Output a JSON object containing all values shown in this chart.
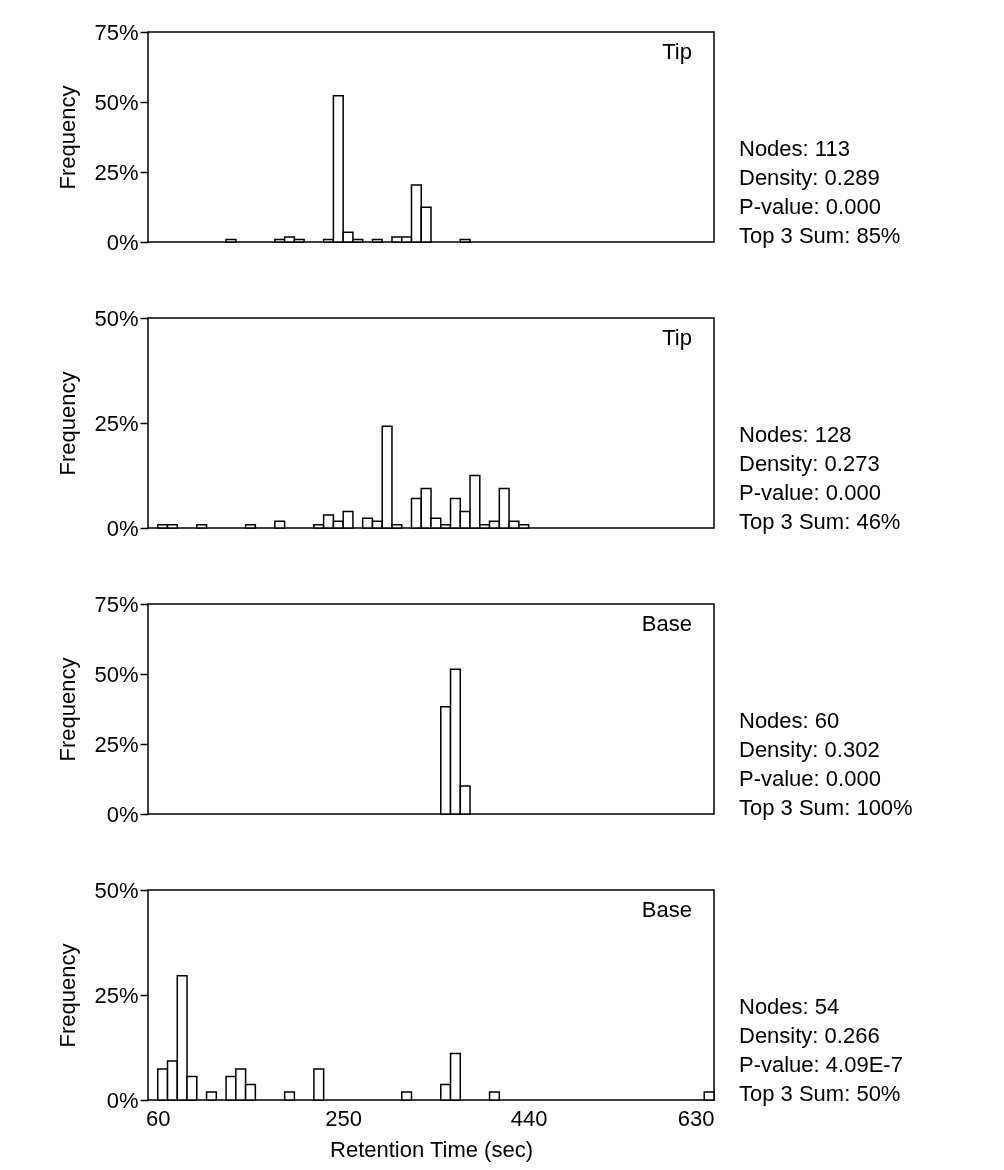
{
  "chart_data": [
    {
      "type": "histogram",
      "ylabel": "Frequency",
      "color": "#ffffff",
      "tick_labels": "y",
      "bins": [
        50,
        60,
        70,
        80,
        90,
        100,
        110,
        120,
        130,
        140,
        150,
        160,
        170,
        180,
        190,
        200,
        210,
        220,
        230,
        240,
        250,
        260,
        270,
        280,
        290,
        300,
        310,
        320,
        330,
        340,
        350,
        360,
        370,
        380,
        390,
        400,
        410,
        420,
        430,
        440,
        450,
        460,
        470,
        480,
        490,
        500,
        510,
        520,
        530,
        540,
        550,
        560,
        570,
        580,
        590,
        600,
        610,
        620,
        630
      ],
      "values": [
        0,
        0,
        0,
        0,
        0,
        0,
        0,
        0,
        0.9,
        0,
        0,
        0,
        0,
        0.9,
        1.8,
        0.9,
        0,
        0,
        0.9,
        52.2,
        3.5,
        0.9,
        0,
        0.9,
        0,
        1.8,
        1.8,
        20.4,
        12.4,
        0,
        0,
        0,
        0.9,
        0,
        0,
        0,
        0,
        0,
        0,
        0,
        0,
        0,
        0,
        0,
        0,
        0,
        0,
        0,
        0,
        0,
        0,
        0,
        0,
        0,
        0,
        0,
        0,
        0
      ],
      "xlim": [
        50,
        630
      ],
      "xticks": [
        60,
        250,
        440,
        630
      ],
      "ylim": [
        0,
        75
      ],
      "yticks": [
        {
          "value": 0,
          "label": "0%"
        },
        {
          "value": 25,
          "label": "25%"
        },
        {
          "value": 50,
          "label": "50%"
        },
        {
          "value": 75,
          "label": "75%"
        }
      ],
      "annotations": [
        "Tip",
        "Nodes: 113",
        "Density: 0.289",
        "P-value: 0.000",
        "Top 3 Sum: 85%"
      ]
    },
    {
      "type": "histogram",
      "ylabel": "Frequency",
      "color": "#ffffff",
      "tick_labels": "y",
      "bins": [
        50,
        60,
        70,
        80,
        90,
        100,
        110,
        120,
        130,
        140,
        150,
        160,
        170,
        180,
        190,
        200,
        210,
        220,
        230,
        240,
        250,
        260,
        270,
        280,
        290,
        300,
        310,
        320,
        330,
        340,
        350,
        360,
        370,
        380,
        390,
        400,
        410,
        420,
        430,
        440,
        450,
        460,
        470,
        480,
        490,
        500,
        510,
        520,
        530,
        540,
        550,
        560,
        570,
        580,
        590,
        600,
        610,
        620,
        630
      ],
      "values": [
        0,
        0.8,
        0.8,
        0,
        0,
        0.8,
        0,
        0,
        0,
        0,
        0.8,
        0,
        0,
        1.6,
        0,
        0,
        0,
        0.8,
        3.1,
        1.6,
        3.9,
        0,
        2.3,
        1.6,
        24.2,
        0.8,
        0,
        7.0,
        9.4,
        2.3,
        0.8,
        7.0,
        3.9,
        12.5,
        0.8,
        1.6,
        9.4,
        1.6,
        0.8,
        0,
        0,
        0,
        0,
        0,
        0,
        0,
        0,
        0,
        0,
        0,
        0,
        0,
        0,
        0,
        0,
        0,
        0,
        0
      ],
      "xlim": [
        50,
        630
      ],
      "xticks": [
        60,
        250,
        440,
        630
      ],
      "ylim": [
        0,
        50
      ],
      "yticks": [
        {
          "value": 0,
          "label": "0%"
        },
        {
          "value": 25,
          "label": "25%"
        },
        {
          "value": 50,
          "label": "50%"
        }
      ],
      "annotations": [
        "Tip",
        "Nodes: 128",
        "Density: 0.273",
        "P-value: 0.000",
        "Top 3 Sum: 46%"
      ]
    },
    {
      "type": "histogram",
      "ylabel": "Frequency",
      "color": "#ffffff",
      "tick_labels": "y",
      "bins": [
        50,
        60,
        70,
        80,
        90,
        100,
        110,
        120,
        130,
        140,
        150,
        160,
        170,
        180,
        190,
        200,
        210,
        220,
        230,
        240,
        250,
        260,
        270,
        280,
        290,
        300,
        310,
        320,
        330,
        340,
        350,
        360,
        370,
        380,
        390,
        400,
        410,
        420,
        430,
        440,
        450,
        460,
        470,
        480,
        490,
        500,
        510,
        520,
        530,
        540,
        550,
        560,
        570,
        580,
        590,
        600,
        610,
        620,
        630
      ],
      "values": [
        0,
        0,
        0,
        0,
        0,
        0,
        0,
        0,
        0,
        0,
        0,
        0,
        0,
        0,
        0,
        0,
        0,
        0,
        0,
        0,
        0,
        0,
        0,
        0,
        0,
        0,
        0,
        0,
        0,
        0,
        38.3,
        51.7,
        10.0,
        0,
        0,
        0,
        0,
        0,
        0,
        0,
        0,
        0,
        0,
        0,
        0,
        0,
        0,
        0,
        0,
        0,
        0,
        0,
        0,
        0,
        0,
        0,
        0,
        0
      ],
      "xlim": [
        50,
        630
      ],
      "xticks": [
        60,
        250,
        440,
        630
      ],
      "ylim": [
        0,
        75
      ],
      "yticks": [
        {
          "value": 0,
          "label": "0%"
        },
        {
          "value": 25,
          "label": "25%"
        },
        {
          "value": 50,
          "label": "50%"
        },
        {
          "value": 75,
          "label": "75%"
        }
      ],
      "annotations": [
        "Base",
        "Nodes: 60",
        "Density: 0.302",
        "P-value: 0.000",
        "Top 3 Sum: 100%"
      ]
    },
    {
      "type": "histogram",
      "ylabel": "Frequency",
      "xlabel": "Retention Time (sec)",
      "color": "#ffffff",
      "bins": [
        50,
        60,
        70,
        80,
        90,
        100,
        110,
        120,
        130,
        140,
        150,
        160,
        170,
        180,
        190,
        200,
        210,
        220,
        230,
        240,
        250,
        260,
        270,
        280,
        290,
        300,
        310,
        320,
        330,
        340,
        350,
        360,
        370,
        380,
        390,
        400,
        410,
        420,
        430,
        440,
        450,
        460,
        470,
        480,
        490,
        500,
        510,
        520,
        530,
        540,
        550,
        560,
        570,
        580,
        590,
        600,
        610,
        620,
        630
      ],
      "values": [
        0,
        7.4,
        9.3,
        29.6,
        5.6,
        0,
        1.9,
        0,
        5.6,
        7.4,
        3.7,
        0,
        0,
        0,
        1.9,
        0,
        0,
        7.4,
        0,
        0,
        0,
        0,
        0,
        0,
        0,
        0,
        1.9,
        0,
        0,
        0,
        3.7,
        11.1,
        0,
        0,
        0,
        1.9,
        0,
        0,
        0,
        0,
        0,
        0,
        0,
        0,
        0,
        0,
        0,
        0,
        0,
        0,
        0,
        0,
        0,
        0,
        0,
        0,
        0,
        1.9
      ],
      "xlim": [
        50,
        630
      ],
      "xticks": [
        60,
        250,
        440,
        630
      ],
      "ylim": [
        0,
        50
      ],
      "yticks": [
        {
          "value": 0,
          "label": "0%"
        },
        {
          "value": 25,
          "label": "25%"
        },
        {
          "value": 50,
          "label": "50%"
        }
      ],
      "annotations": [
        "Base",
        "Nodes: 54",
        "Density: 0.266",
        "P-value: 4.09E-7",
        "Top 3 Sum: 50%"
      ]
    }
  ]
}
